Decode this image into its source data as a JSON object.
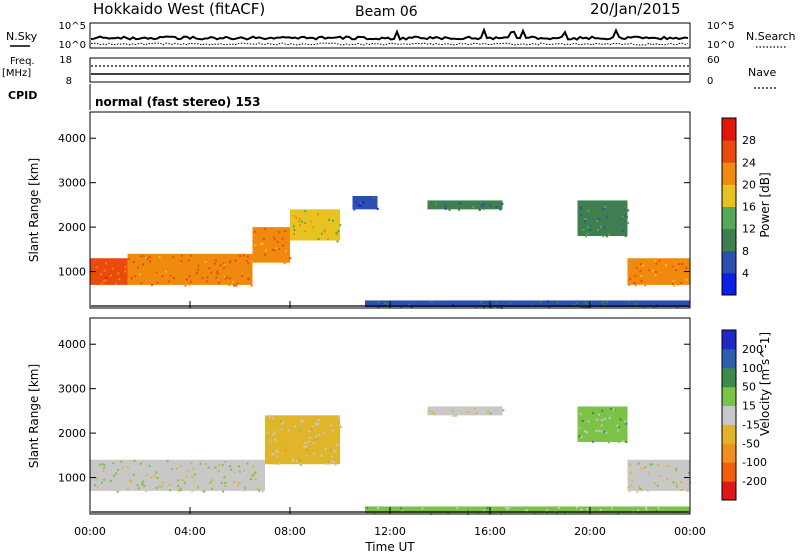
{
  "header": {
    "station": "Hokkaido West (fitACF)",
    "beam": "Beam 06",
    "date": "20/Jan/2015"
  },
  "strip": {
    "nsky_label": "N.Sky",
    "nsearch_label": "N.Search",
    "noise_ticks": [
      "10^5",
      "10^0"
    ],
    "freq_label": "Freq.",
    "freq_unit": "[MHz]",
    "freq_ticks": [
      "18",
      "8"
    ],
    "nave_label": "Nave",
    "nave_ticks": [
      "60",
      "0"
    ],
    "cpid_label": "CPID",
    "cpid_text": "normal (fast stereo) 153"
  },
  "colors": {
    "power": [
      "#0b1fe6",
      "#2a4fb0",
      "#3f7f4f",
      "#55a85a",
      "#e8c21f",
      "#f08a0e",
      "#ea4b0c",
      "#e0160c"
    ],
    "velocity": [
      "#2128c8",
      "#2d5fb0",
      "#3c8a4c",
      "#7cc247",
      "#c8c8c8",
      "#e0b52a",
      "#f09020",
      "#f0600f",
      "#e11616"
    ]
  },
  "chart_data": [
    {
      "type": "heatmap",
      "name": "power",
      "xlabel": "Time UT",
      "ylabel": "Slant Range [km]",
      "x_ticks": [
        "00:00",
        "04:00",
        "08:00",
        "12:00",
        "16:00",
        "20:00",
        "00:00"
      ],
      "y_ticks": [
        1000,
        2000,
        3000,
        4000
      ],
      "ylim": [
        180,
        4590
      ],
      "xlim_hours": [
        0,
        24
      ],
      "colorbar": {
        "label": "Power [dB]",
        "ticks": [
          "4",
          "8",
          "12",
          "16",
          "20",
          "24",
          "28"
        ],
        "range": [
          0,
          30
        ]
      },
      "regions": [
        {
          "x": [
            0,
            1.5
          ],
          "y": [
            700,
            1300
          ],
          "value": 23
        },
        {
          "x": [
            1.5,
            6.5
          ],
          "y": [
            700,
            1400
          ],
          "value": 22
        },
        {
          "x": [
            6.5,
            8
          ],
          "y": [
            1200,
            2000
          ],
          "value": 21
        },
        {
          "x": [
            8,
            10
          ],
          "y": [
            1700,
            2400
          ],
          "value": 17
        },
        {
          "x": [
            10.5,
            11.5
          ],
          "y": [
            2400,
            2700
          ],
          "value": 6
        },
        {
          "x": [
            11,
            24
          ],
          "y": [
            200,
            350
          ],
          "value": 7
        },
        {
          "x": [
            13.5,
            16.5
          ],
          "y": [
            2400,
            2600
          ],
          "value": 8
        },
        {
          "x": [
            19.5,
            21.5
          ],
          "y": [
            1800,
            2600
          ],
          "value": 9
        },
        {
          "x": [
            21.5,
            24
          ],
          "y": [
            700,
            1300
          ],
          "value": 21
        }
      ]
    },
    {
      "type": "heatmap",
      "name": "velocity",
      "xlabel": "Time UT",
      "ylabel": "Slant Range [km]",
      "x_ticks": [
        "00:00",
        "04:00",
        "08:00",
        "12:00",
        "16:00",
        "20:00",
        "00:00"
      ],
      "y_ticks": [
        1000,
        2000,
        3000,
        4000
      ],
      "ylim": [
        180,
        4590
      ],
      "xlim_hours": [
        0,
        24
      ],
      "colorbar": {
        "label": "Velocity [m s^-1]",
        "ticks": [
          "200",
          "100",
          "50",
          "15",
          "-15",
          "-50",
          "-100",
          "-200"
        ],
        "range": [
          -250,
          250
        ]
      },
      "regions": [
        {
          "x": [
            0,
            7
          ],
          "y": [
            700,
            1400
          ],
          "value": 0
        },
        {
          "x": [
            7,
            10
          ],
          "y": [
            1300,
            2400
          ],
          "value": -30
        },
        {
          "x": [
            11,
            24
          ],
          "y": [
            200,
            350
          ],
          "value": 30
        },
        {
          "x": [
            13.5,
            16.5
          ],
          "y": [
            2400,
            2600
          ],
          "value": -20
        },
        {
          "x": [
            19.5,
            21.5
          ],
          "y": [
            1800,
            2600
          ],
          "value": 40
        },
        {
          "x": [
            21.5,
            24
          ],
          "y": [
            700,
            1400
          ],
          "value": 0
        }
      ]
    }
  ]
}
